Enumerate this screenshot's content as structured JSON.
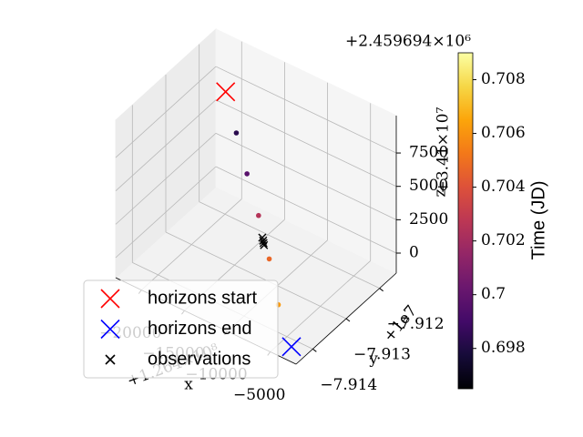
{
  "chart_data": {
    "type": "scatter3d",
    "xlim": [
      -23000,
      -2000
    ],
    "ylim": [
      -7.9145,
      -7.9115
    ],
    "zlim": [
      -1500,
      10300
    ],
    "xticks": [
      {
        "value": -20000,
        "label": "−20000"
      },
      {
        "value": -15000,
        "label": "−15000"
      },
      {
        "value": -10000,
        "label": "−10000"
      },
      {
        "value": -5000,
        "label": "−5000"
      }
    ],
    "yticks": [
      {
        "value": -7.914,
        "label": "−7.914"
      },
      {
        "value": -7.913,
        "label": "−7.913"
      },
      {
        "value": -7.912,
        "label": "−7.912"
      }
    ],
    "zticks": [
      0,
      2500,
      5000,
      7500
    ],
    "xlabel": "x",
    "ylabel": "y",
    "zlabel": "z",
    "x_offset": "+1.264×10⁸",
    "y_offset": "+1e7",
    "z_offset": "+3.41×10⁷",
    "grid": true,
    "legend": "lower left",
    "series": [
      {
        "name": "horizons start",
        "color": "#ff0000",
        "marker": "X",
        "x": [
          -20700
        ],
        "y": [
          -7.9118
        ],
        "z": [
          7000
        ]
      },
      {
        "name": "horizons end",
        "color": "#0000ff",
        "marker": "X",
        "x": [
          -3700
        ],
        "y": [
          -7.9142
        ],
        "z": [
          -1400
        ]
      },
      {
        "name": "observations",
        "color": "#000000",
        "marker": "x",
        "x": [
          -10600,
          -10500,
          -10450,
          -10400
        ],
        "y": [
          -7.9133,
          -7.9133,
          -7.9133,
          -7.9133
        ],
        "z": [
          2600,
          2400,
          2240,
          2100
        ]
      },
      {
        "marker": "o",
        "x": [
          -17900,
          -15100,
          -12200,
          -9400,
          -6400
        ],
        "y": [
          -7.9122,
          -7.9126,
          -7.913,
          -7.9134,
          -7.9139
        ],
        "z": [
          5690,
          4400,
          3080,
          1600,
          230
        ],
        "c": [
          0.6983,
          0.6997,
          0.7025,
          0.7047,
          0.7062
        ]
      }
    ],
    "colorbar": {
      "label": "Time (JD)",
      "offset": "+2.459694×10⁶",
      "colormap": "inferno",
      "lim": [
        0.6965,
        0.709
      ],
      "ticks": [
        0.698,
        0.7,
        0.702,
        0.704,
        0.706,
        0.708
      ]
    }
  }
}
